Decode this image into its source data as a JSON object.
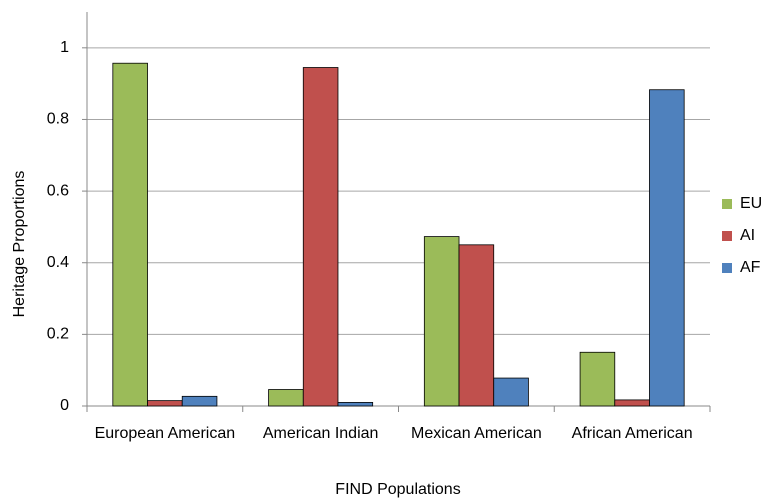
{
  "chart_data": {
    "type": "bar",
    "x_label": "FIND Populations",
    "y_label": "Heritage Proportions",
    "categories": [
      "European American",
      "American Indian",
      "Mexican American",
      "African American"
    ],
    "series": [
      {
        "name": "EU",
        "color": "#9bbb59",
        "values": [
          0.957,
          0.046,
          0.473,
          0.15
        ]
      },
      {
        "name": "AI",
        "color": "#c0504d",
        "values": [
          0.015,
          0.945,
          0.45,
          0.017
        ]
      },
      {
        "name": "AF",
        "color": "#4f81bd",
        "values": [
          0.027,
          0.01,
          0.078,
          0.883
        ]
      }
    ],
    "ylim": [
      0,
      1.1
    ],
    "yticks": [
      0,
      0.2,
      0.4,
      0.6,
      0.8,
      1
    ],
    "grid": true,
    "legend": "right"
  }
}
